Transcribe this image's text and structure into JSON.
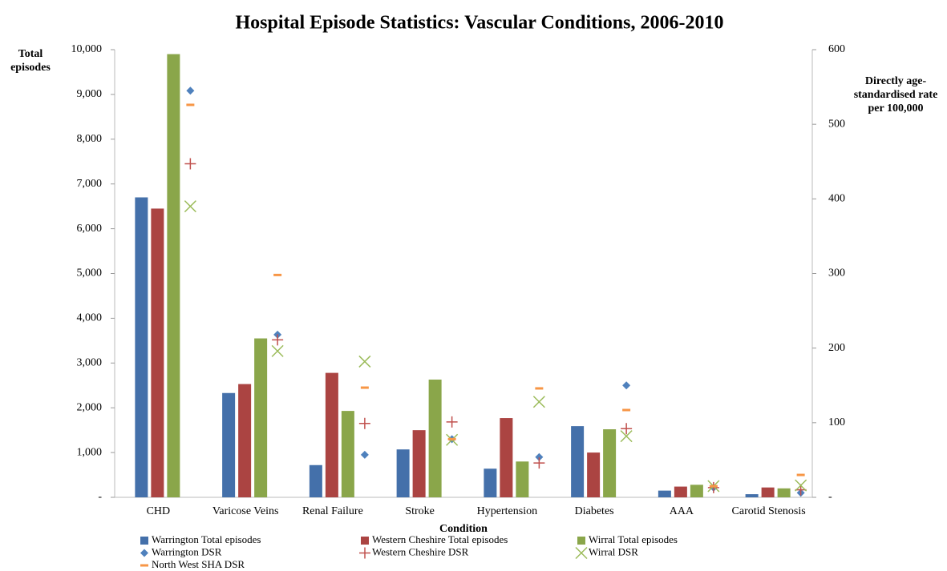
{
  "chart_data": {
    "type": "bar",
    "title": "Hospital Episode Statistics: Vascular Conditions, 2006-2010",
    "x_label": "Condition",
    "y_label": "Total episodes",
    "y2_label": "Directly age-standardised rate per 100,000",
    "categories": [
      "CHD",
      "Varicose Veins",
      "Renal Failure",
      "Stroke",
      "Hypertension",
      "Diabetes",
      "AAA",
      "Carotid Stenosis"
    ],
    "ylim": [
      0,
      10000
    ],
    "yticks": [
      {
        "value": 0,
        "label": "-"
      },
      {
        "value": 1000,
        "label": "1,000"
      },
      {
        "value": 2000,
        "label": "2,000"
      },
      {
        "value": 3000,
        "label": "3,000"
      },
      {
        "value": 4000,
        "label": "4,000"
      },
      {
        "value": 5000,
        "label": "5,000"
      },
      {
        "value": 6000,
        "label": "6,000"
      },
      {
        "value": 7000,
        "label": "7,000"
      },
      {
        "value": 8000,
        "label": "8,000"
      },
      {
        "value": 9000,
        "label": "9,000"
      },
      {
        "value": 10000,
        "label": "10,000"
      }
    ],
    "y2lim": [
      0,
      600
    ],
    "y2ticks": [
      {
        "value": 0,
        "label": "-"
      },
      100,
      200,
      300,
      400,
      500,
      600
    ],
    "legend": "bottom",
    "series": [
      {
        "name": "Warrington Total episodes",
        "color": "#4470aa",
        "marker": "bar",
        "values": [
          6700,
          2330,
          720,
          1070,
          640,
          1590,
          150,
          70
        ]
      },
      {
        "name": "Western Cheshire Total episodes",
        "color": "#ab4442",
        "marker": "bar",
        "values": [
          6450,
          2530,
          2780,
          1500,
          1770,
          1000,
          240,
          220
        ]
      },
      {
        "name": "Wirral Total episodes",
        "color": "#8aa64a",
        "marker": "bar",
        "values": [
          9900,
          3550,
          1930,
          2630,
          800,
          1520,
          280,
          200
        ]
      },
      {
        "name": "Warrington DSR",
        "color": "#4f81bd",
        "marker": "diamond",
        "axis": "y2",
        "values": [
          545,
          218,
          57,
          78,
          54,
          150,
          13,
          6
        ]
      },
      {
        "name": "Western Cheshire DSR",
        "color": "#c0504d",
        "marker": "plus",
        "axis": "y2",
        "values": [
          447,
          211,
          99,
          101,
          46,
          92,
          13,
          10
        ]
      },
      {
        "name": "Wirral DSR",
        "color": "#9bbb59",
        "marker": "x",
        "axis": "y2",
        "values": [
          390,
          196,
          182,
          77,
          128,
          82,
          15,
          16
        ]
      },
      {
        "name": "North West SHA DSR",
        "color": "#f79646",
        "marker": "dash",
        "axis": "y2",
        "values": [
          526,
          298,
          147,
          78,
          146,
          117,
          15,
          30
        ]
      }
    ]
  }
}
